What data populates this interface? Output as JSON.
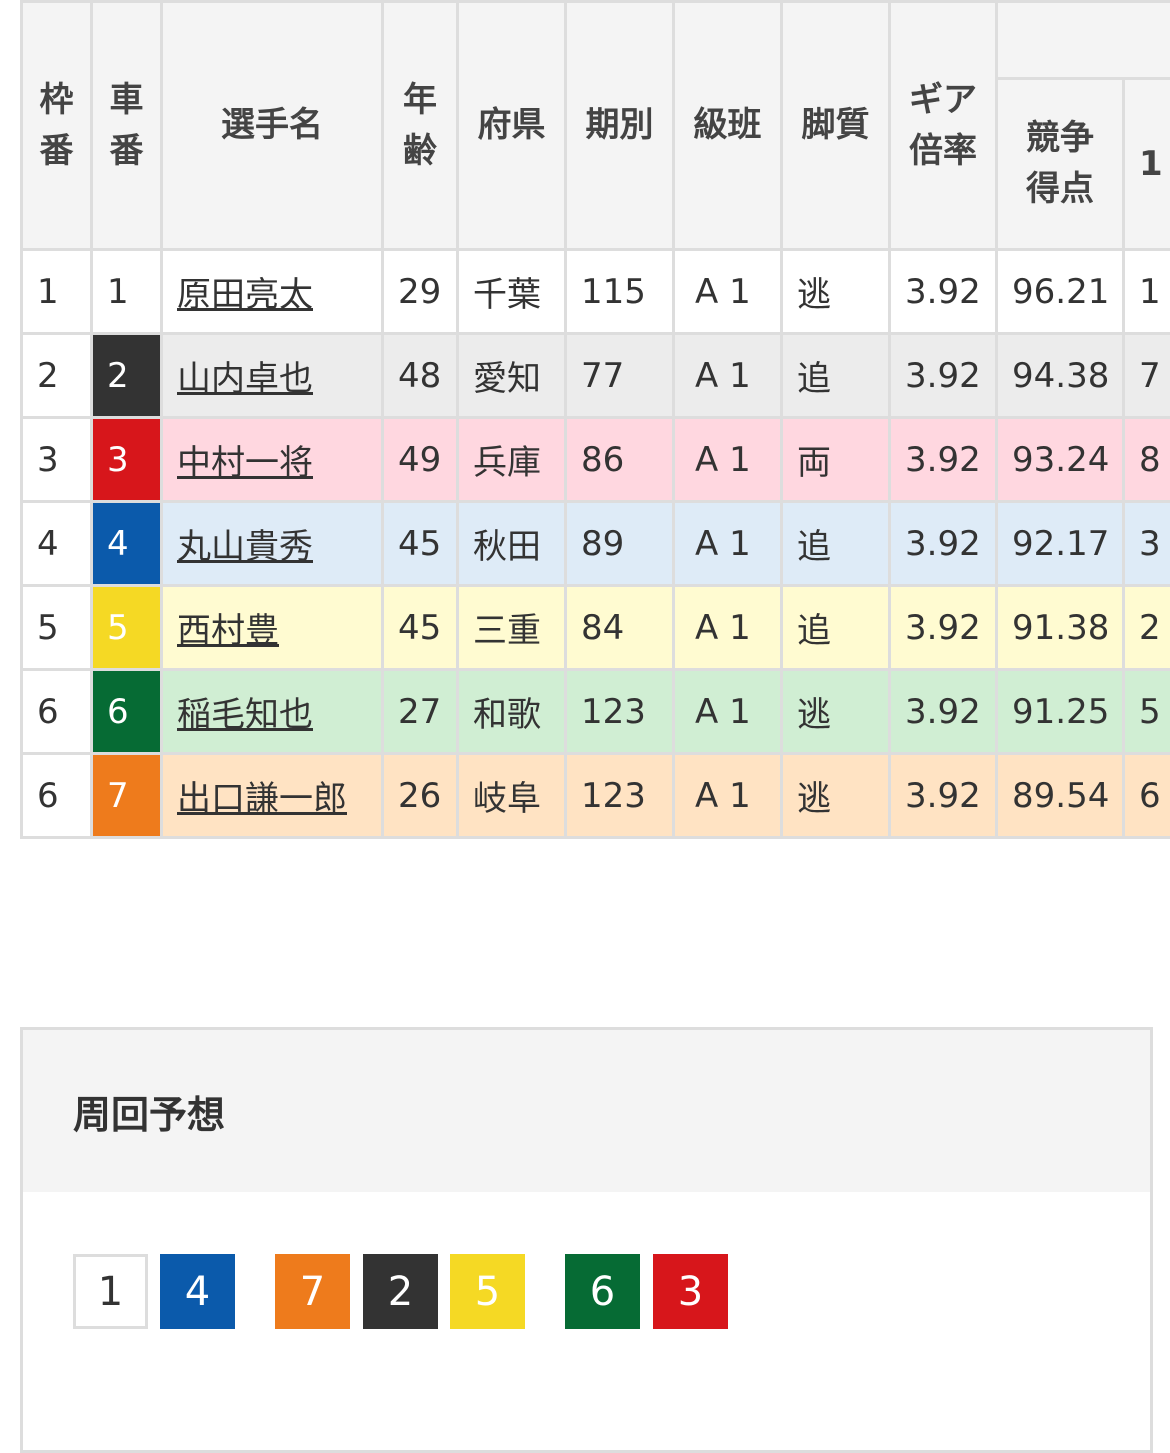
{
  "table": {
    "headers": [
      "枠\n番",
      "車\n番",
      "選手名",
      "年\n齢",
      "府県",
      "期別",
      "級班",
      "脚質",
      "ギア\n倍率",
      "競争\n得点",
      "1"
    ],
    "rows": [
      {
        "waku": "1",
        "sha": "1",
        "name": "原田亮太",
        "age": "29",
        "pref": "千葉",
        "term": "115",
        "class": "A 1",
        "style": "逃",
        "gear": "3.92",
        "score": "96.21",
        "extra": "1",
        "color": "#ffffff",
        "text": "#333333",
        "bg": "#ffffff"
      },
      {
        "waku": "2",
        "sha": "2",
        "name": "山内卓也",
        "age": "48",
        "pref": "愛知",
        "term": "77",
        "class": "A 1",
        "style": "追",
        "gear": "3.92",
        "score": "94.38",
        "extra": "7",
        "color": "#333333",
        "text": "#ffffff",
        "bg": "#ececec"
      },
      {
        "waku": "3",
        "sha": "3",
        "name": "中村一将",
        "age": "49",
        "pref": "兵庫",
        "term": "86",
        "class": "A 1",
        "style": "両",
        "gear": "3.92",
        "score": "93.24",
        "extra": "8",
        "color": "#d7161b",
        "text": "#ffffff",
        "bg": "#ffd7e0"
      },
      {
        "waku": "4",
        "sha": "4",
        "name": "丸山貴秀",
        "age": "45",
        "pref": "秋田",
        "term": "89",
        "class": "A 1",
        "style": "追",
        "gear": "3.92",
        "score": "92.17",
        "extra": "3",
        "color": "#0b5aab",
        "text": "#ffffff",
        "bg": "#deebf7"
      },
      {
        "waku": "5",
        "sha": "5",
        "name": "西村豊",
        "age": "45",
        "pref": "三重",
        "term": "84",
        "class": "A 1",
        "style": "追",
        "gear": "3.92",
        "score": "91.38",
        "extra": "2",
        "color": "#f5d924",
        "text": "#ffffff",
        "bg": "#fffbd1"
      },
      {
        "waku": "6",
        "sha": "6",
        "name": "稲毛知也",
        "age": "27",
        "pref": "和歌",
        "term": "123",
        "class": "A 1",
        "style": "逃",
        "gear": "3.92",
        "score": "91.25",
        "extra": "5",
        "color": "#066b34",
        "text": "#ffffff",
        "bg": "#d0eed3"
      },
      {
        "waku": "6",
        "sha": "7",
        "name": "出口謙一郎",
        "age": "26",
        "pref": "岐阜",
        "term": "123",
        "class": "A 1",
        "style": "逃",
        "gear": "3.92",
        "score": "89.54",
        "extra": "6",
        "color": "#ee7b1c",
        "text": "#ffffff",
        "bg": "#ffe3c3"
      }
    ]
  },
  "lap_prediction": {
    "title": "周回予想",
    "boxes": [
      {
        "num": "1",
        "color": "#ffffff",
        "text": "#333333"
      },
      {
        "num": "4",
        "color": "#0b5aab",
        "text": "#ffffff"
      },
      {
        "num": "7",
        "color": "#ee7b1c",
        "text": "#ffffff"
      },
      {
        "num": "2",
        "color": "#333333",
        "text": "#ffffff"
      },
      {
        "num": "5",
        "color": "#f5d924",
        "text": "#ffffff"
      },
      {
        "num": "6",
        "color": "#066b34",
        "text": "#ffffff"
      },
      {
        "num": "3",
        "color": "#d7161b",
        "text": "#ffffff"
      }
    ]
  }
}
